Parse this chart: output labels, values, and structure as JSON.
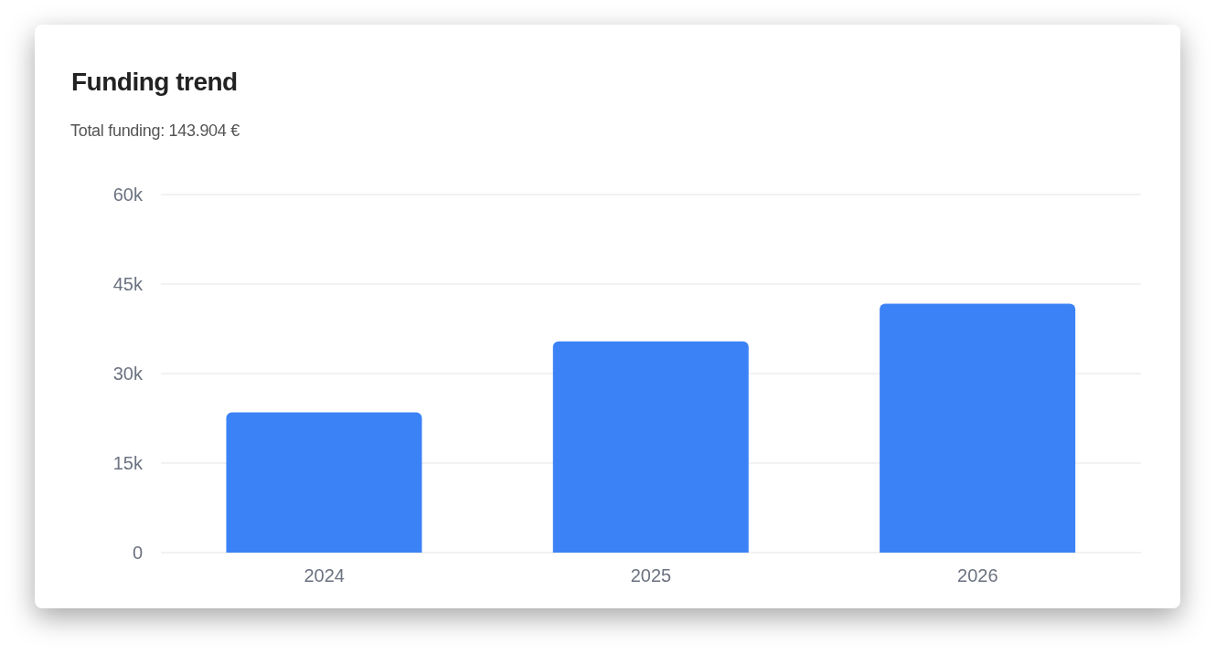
{
  "chart_data": {
    "type": "bar",
    "title": "Funding trend",
    "subtitle": "Total funding: 143.904 €",
    "categories": [
      "2024",
      "2025",
      "2026"
    ],
    "values": [
      23500,
      35400,
      41700
    ],
    "color": "#3b82f6",
    "ylim": [
      0,
      60000
    ],
    "yticks": [
      {
        "value": 0,
        "label": "0"
      },
      {
        "value": 15000,
        "label": "15k"
      },
      {
        "value": 30000,
        "label": "30k"
      },
      {
        "value": 45000,
        "label": "45k"
      },
      {
        "value": 60000,
        "label": "60k"
      }
    ],
    "grid": "y"
  }
}
